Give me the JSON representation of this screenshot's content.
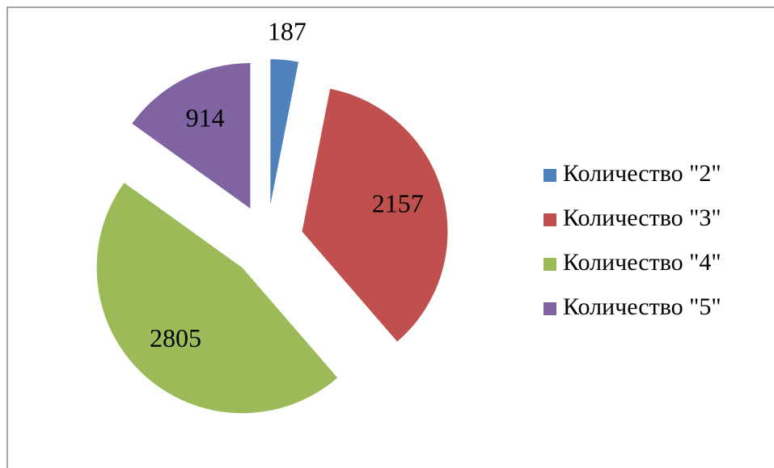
{
  "chart_data": {
    "type": "pie",
    "categories": [
      "Количество \"2\"",
      "Количество \"3\"",
      "Количество \"4\"",
      "Количество \"5\""
    ],
    "values": [
      187,
      2157,
      2805,
      914
    ],
    "colors": [
      "#4f81bd",
      "#c0504d",
      "#9bbb59",
      "#8064a2"
    ],
    "legend": "right"
  }
}
